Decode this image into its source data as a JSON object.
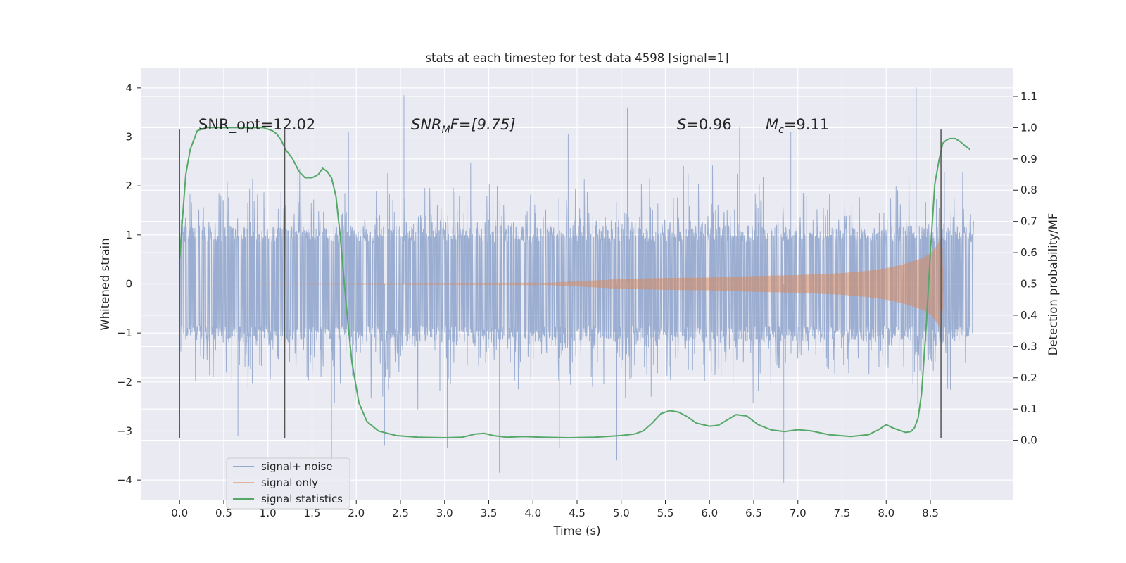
{
  "chart_data": {
    "type": "line",
    "title": "stats at each timestep for test data 4598 [signal=1]",
    "xlabel": "Time (s)",
    "ylabel_left": "Whitened strain",
    "ylabel_right": "Detection probability/MF",
    "xlim": [
      -0.44,
      9.44
    ],
    "ylim_left": [
      -4.4,
      4.4
    ],
    "ylim_right": [
      -0.19,
      1.19
    ],
    "x_ticks": [
      "0.0",
      "0.5",
      "1.0",
      "1.5",
      "2.0",
      "2.5",
      "3.0",
      "3.5",
      "4.0",
      "4.5",
      "5.0",
      "5.5",
      "6.0",
      "6.5",
      "7.0",
      "7.5",
      "8.0",
      "8.5"
    ],
    "x_tick_values": [
      0.0,
      0.5,
      1.0,
      1.5,
      2.0,
      2.5,
      3.0,
      3.5,
      4.0,
      4.5,
      5.0,
      5.5,
      6.0,
      6.5,
      7.0,
      7.5,
      8.0,
      8.5
    ],
    "y_left_ticks": [
      "4",
      "3",
      "2",
      "1",
      "0",
      "−1",
      "−2",
      "−3",
      "−4"
    ],
    "y_left_tick_values": [
      4,
      3,
      2,
      1,
      0,
      -1,
      -2,
      -3,
      -4
    ],
    "y_right_ticks": [
      "1.1",
      "1.0",
      "0.9",
      "0.8",
      "0.7",
      "0.6",
      "0.5",
      "0.4",
      "0.3",
      "0.2",
      "0.1",
      "0.0"
    ],
    "y_right_tick_values": [
      1.1,
      1.0,
      0.9,
      0.8,
      0.7,
      0.6,
      0.5,
      0.4,
      0.3,
      0.2,
      0.1,
      0.0
    ],
    "annotations": {
      "snr_opt": "SNR_opt=12.02",
      "snr_mf_base": "SNR",
      "snr_mf_sub": "M",
      "snr_mf_rest": "F=[9.75]",
      "s_label": "S",
      "s_value": "=0.96",
      "mc_base": "M",
      "mc_sub": "c",
      "mc_value": "=9.11"
    },
    "vertical_markers_s": [
      0.0,
      1.19,
      8.62
    ],
    "legend": {
      "placement": "lower-left",
      "entries": [
        "signal+ noise",
        "signal only",
        "signal statistics"
      ]
    },
    "series": [
      {
        "name": "signal+ noise",
        "axis": "left",
        "description": "whitened noisy strain, roughly Gaussian, sigma ~1, sampled 0 to 8.99 s",
        "x_range": [
          0.0,
          8.99
        ],
        "spikes": [
          [
            0.66,
            -3.1
          ],
          [
            1.34,
            2.7
          ],
          [
            1.72,
            -3.6
          ],
          [
            2.32,
            -3.3
          ],
          [
            2.54,
            3.85
          ],
          [
            3.03,
            -3.35
          ],
          [
            3.62,
            -3.85
          ],
          [
            4.3,
            -3.35
          ],
          [
            4.4,
            3.05
          ],
          [
            4.95,
            -3.6
          ],
          [
            5.07,
            3.6
          ],
          [
            6.34,
            3.2
          ],
          [
            6.84,
            -4.05
          ],
          [
            6.92,
            3.1
          ],
          [
            8.34,
            4.02
          ]
        ]
      },
      {
        "name": "signal only",
        "axis": "left",
        "description": "chirp signal with amplitude growing toward merger",
        "x_range": [
          0.0,
          8.65
        ],
        "envelope": [
          [
            0.0,
            0.0
          ],
          [
            4.0,
            0.01
          ],
          [
            4.5,
            0.05
          ],
          [
            5.0,
            0.1
          ],
          [
            5.5,
            0.12
          ],
          [
            6.0,
            0.13
          ],
          [
            6.5,
            0.16
          ],
          [
            7.0,
            0.18
          ],
          [
            7.5,
            0.22
          ],
          [
            7.8,
            0.27
          ],
          [
            8.0,
            0.32
          ],
          [
            8.2,
            0.4
          ],
          [
            8.4,
            0.52
          ],
          [
            8.5,
            0.62
          ],
          [
            8.58,
            0.8
          ],
          [
            8.63,
            1.0
          ],
          [
            8.65,
            0.0
          ]
        ]
      },
      {
        "name": "signal statistics",
        "axis": "right",
        "x": [
          0.0,
          0.03,
          0.07,
          0.12,
          0.2,
          0.3,
          0.45,
          0.6,
          0.8,
          0.95,
          1.05,
          1.1,
          1.15,
          1.2,
          1.28,
          1.35,
          1.42,
          1.5,
          1.57,
          1.62,
          1.67,
          1.72,
          1.77,
          1.82,
          1.88,
          1.95,
          2.03,
          2.12,
          2.25,
          2.45,
          2.7,
          3.0,
          3.2,
          3.35,
          3.45,
          3.55,
          3.7,
          3.9,
          4.1,
          4.4,
          4.7,
          5.0,
          5.15,
          5.25,
          5.35,
          5.45,
          5.55,
          5.65,
          5.75,
          5.85,
          6.0,
          6.1,
          6.2,
          6.3,
          6.42,
          6.55,
          6.7,
          6.85,
          7.0,
          7.15,
          7.35,
          7.6,
          7.8,
          7.92,
          8.0,
          8.07,
          8.15,
          8.22,
          8.28,
          8.32,
          8.36,
          8.4,
          8.45,
          8.5,
          8.55,
          8.6,
          8.64,
          8.68,
          8.72,
          8.78,
          8.84,
          8.9,
          8.95
        ],
        "values": [
          0.58,
          0.7,
          0.85,
          0.93,
          0.99,
          1.0,
          1.0,
          1.0,
          1.0,
          1.0,
          0.99,
          0.98,
          0.96,
          0.93,
          0.9,
          0.86,
          0.84,
          0.84,
          0.85,
          0.87,
          0.86,
          0.84,
          0.78,
          0.65,
          0.45,
          0.25,
          0.12,
          0.06,
          0.03,
          0.015,
          0.01,
          0.008,
          0.01,
          0.02,
          0.022,
          0.015,
          0.01,
          0.012,
          0.01,
          0.008,
          0.01,
          0.015,
          0.02,
          0.03,
          0.055,
          0.085,
          0.095,
          0.09,
          0.075,
          0.055,
          0.045,
          0.048,
          0.065,
          0.082,
          0.078,
          0.05,
          0.033,
          0.028,
          0.034,
          0.03,
          0.018,
          0.012,
          0.018,
          0.035,
          0.05,
          0.04,
          0.032,
          0.025,
          0.028,
          0.04,
          0.07,
          0.15,
          0.35,
          0.6,
          0.82,
          0.9,
          0.95,
          0.96,
          0.965,
          0.965,
          0.955,
          0.94,
          0.93
        ]
      }
    ]
  }
}
